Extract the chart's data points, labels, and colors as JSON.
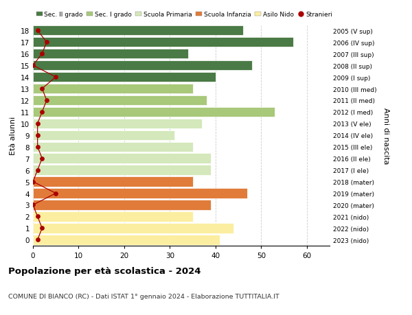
{
  "ages": [
    0,
    1,
    2,
    3,
    4,
    5,
    6,
    7,
    8,
    9,
    10,
    11,
    12,
    13,
    14,
    15,
    16,
    17,
    18
  ],
  "bar_values": [
    41,
    44,
    35,
    39,
    47,
    35,
    39,
    39,
    35,
    31,
    37,
    53,
    38,
    35,
    40,
    48,
    34,
    57,
    46
  ],
  "stranieri": [
    1,
    2,
    1,
    0,
    5,
    0,
    1,
    2,
    1,
    1,
    1,
    2,
    3,
    2,
    5,
    0,
    2,
    3,
    1
  ],
  "bar_colors": [
    "#FCEEA0",
    "#FCEEA0",
    "#FCEEA0",
    "#E07B39",
    "#E07B39",
    "#E07B39",
    "#D4E8BB",
    "#D4E8BB",
    "#D4E8BB",
    "#D4E8BB",
    "#D4E8BB",
    "#A8C87A",
    "#A8C87A",
    "#A8C87A",
    "#4A7A45",
    "#4A7A45",
    "#4A7A45",
    "#4A7A45",
    "#4A7A45"
  ],
  "right_labels": [
    "2023 (nido)",
    "2022 (nido)",
    "2021 (nido)",
    "2020 (mater)",
    "2019 (mater)",
    "2018 (mater)",
    "2017 (I ele)",
    "2016 (II ele)",
    "2015 (III ele)",
    "2014 (IV ele)",
    "2013 (V ele)",
    "2012 (I med)",
    "2011 (II med)",
    "2010 (III med)",
    "2009 (I sup)",
    "2008 (II sup)",
    "2007 (III sup)",
    "2006 (IV sup)",
    "2005 (V sup)"
  ],
  "legend_labels": [
    "Sec. II grado",
    "Sec. I grado",
    "Scuola Primaria",
    "Scuola Infanzia",
    "Asilo Nido",
    "Stranieri"
  ],
  "legend_colors": [
    "#4A7A45",
    "#A8C87A",
    "#D4E8BB",
    "#E07B39",
    "#FCEEA0",
    "#AA0000"
  ],
  "xlabel_ticks": [
    0,
    10,
    20,
    30,
    40,
    50,
    60
  ],
  "title": "Popolazione per età scolastica - 2024",
  "subtitle": "COMUNE DI BIANCO (RC) - Dati ISTAT 1° gennaio 2024 - Elaborazione TUTTITALIA.IT",
  "ylabel": "Età alunni",
  "ylabel2": "Anni di nascita",
  "xlim": [
    0,
    65
  ],
  "bar_height": 0.85,
  "stranieri_color": "#AA0000",
  "grid_color": "#CCCCCC",
  "bg_color": "#FFFFFF"
}
